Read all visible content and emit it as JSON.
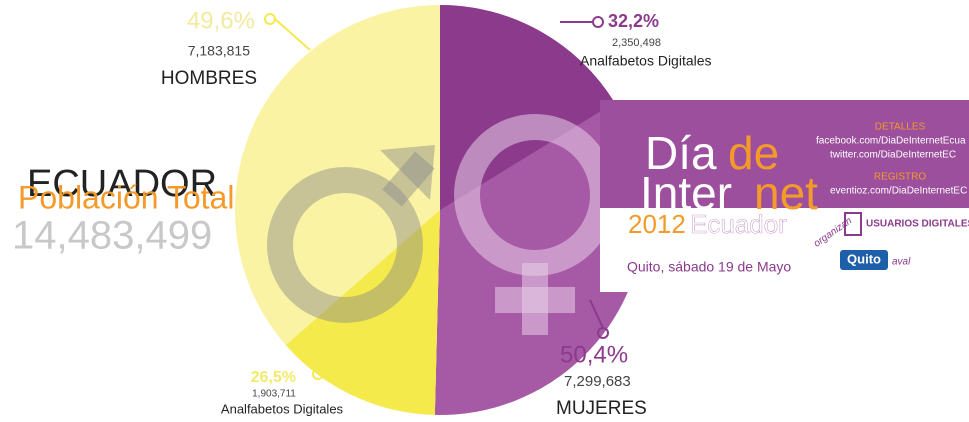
{
  "chart_data": {
    "type": "pie",
    "title": "ECUADOR",
    "subtitle": "Población Total",
    "total": 14483499,
    "total_label": "14,483,499",
    "slices": [
      {
        "name": "MUJERES",
        "color": "#a659a5",
        "value": 50.4,
        "value_label": "50,4%",
        "count": 7299683,
        "count_label": "7,299,683",
        "sub": {
          "name": "Analfabetos Digitales",
          "color": "#8b3a8c",
          "value": 32.2,
          "value_label": "32,2%",
          "count": 2350498,
          "count_label": "2,350,498"
        }
      },
      {
        "name": "HOMBRES",
        "color": "#faf3a3",
        "value": 49.6,
        "value_label": "49,6%",
        "count": 7183815,
        "count_label": "7,183,815",
        "sub": {
          "name": "Analfabetos Digitales",
          "color": "#f5ea4c",
          "value": 26.5,
          "value_label": "26,5%",
          "count": 1903711,
          "count_label": "1,903,711"
        }
      }
    ]
  },
  "banner": {
    "title_1a": "Día",
    "title_1b": "de",
    "title_2a": "Inter",
    "title_2b": "net",
    "year": "2012",
    "country": "Ecuador",
    "details_heading": "DETALLES",
    "facebook": "facebook.com/DiaDeInternetEcua",
    "twitter": "twitter.com/DiaDeInternetEC",
    "register_heading": "REGISTRO",
    "register": "eventioz.com/DiaDeInternetEC",
    "date": "Quito, sábado 19 de Mayo",
    "organizers": "organizan",
    "org_1": "USUARIOS DIGITALES",
    "org_2": "Quito",
    "endorsement": "aval"
  }
}
